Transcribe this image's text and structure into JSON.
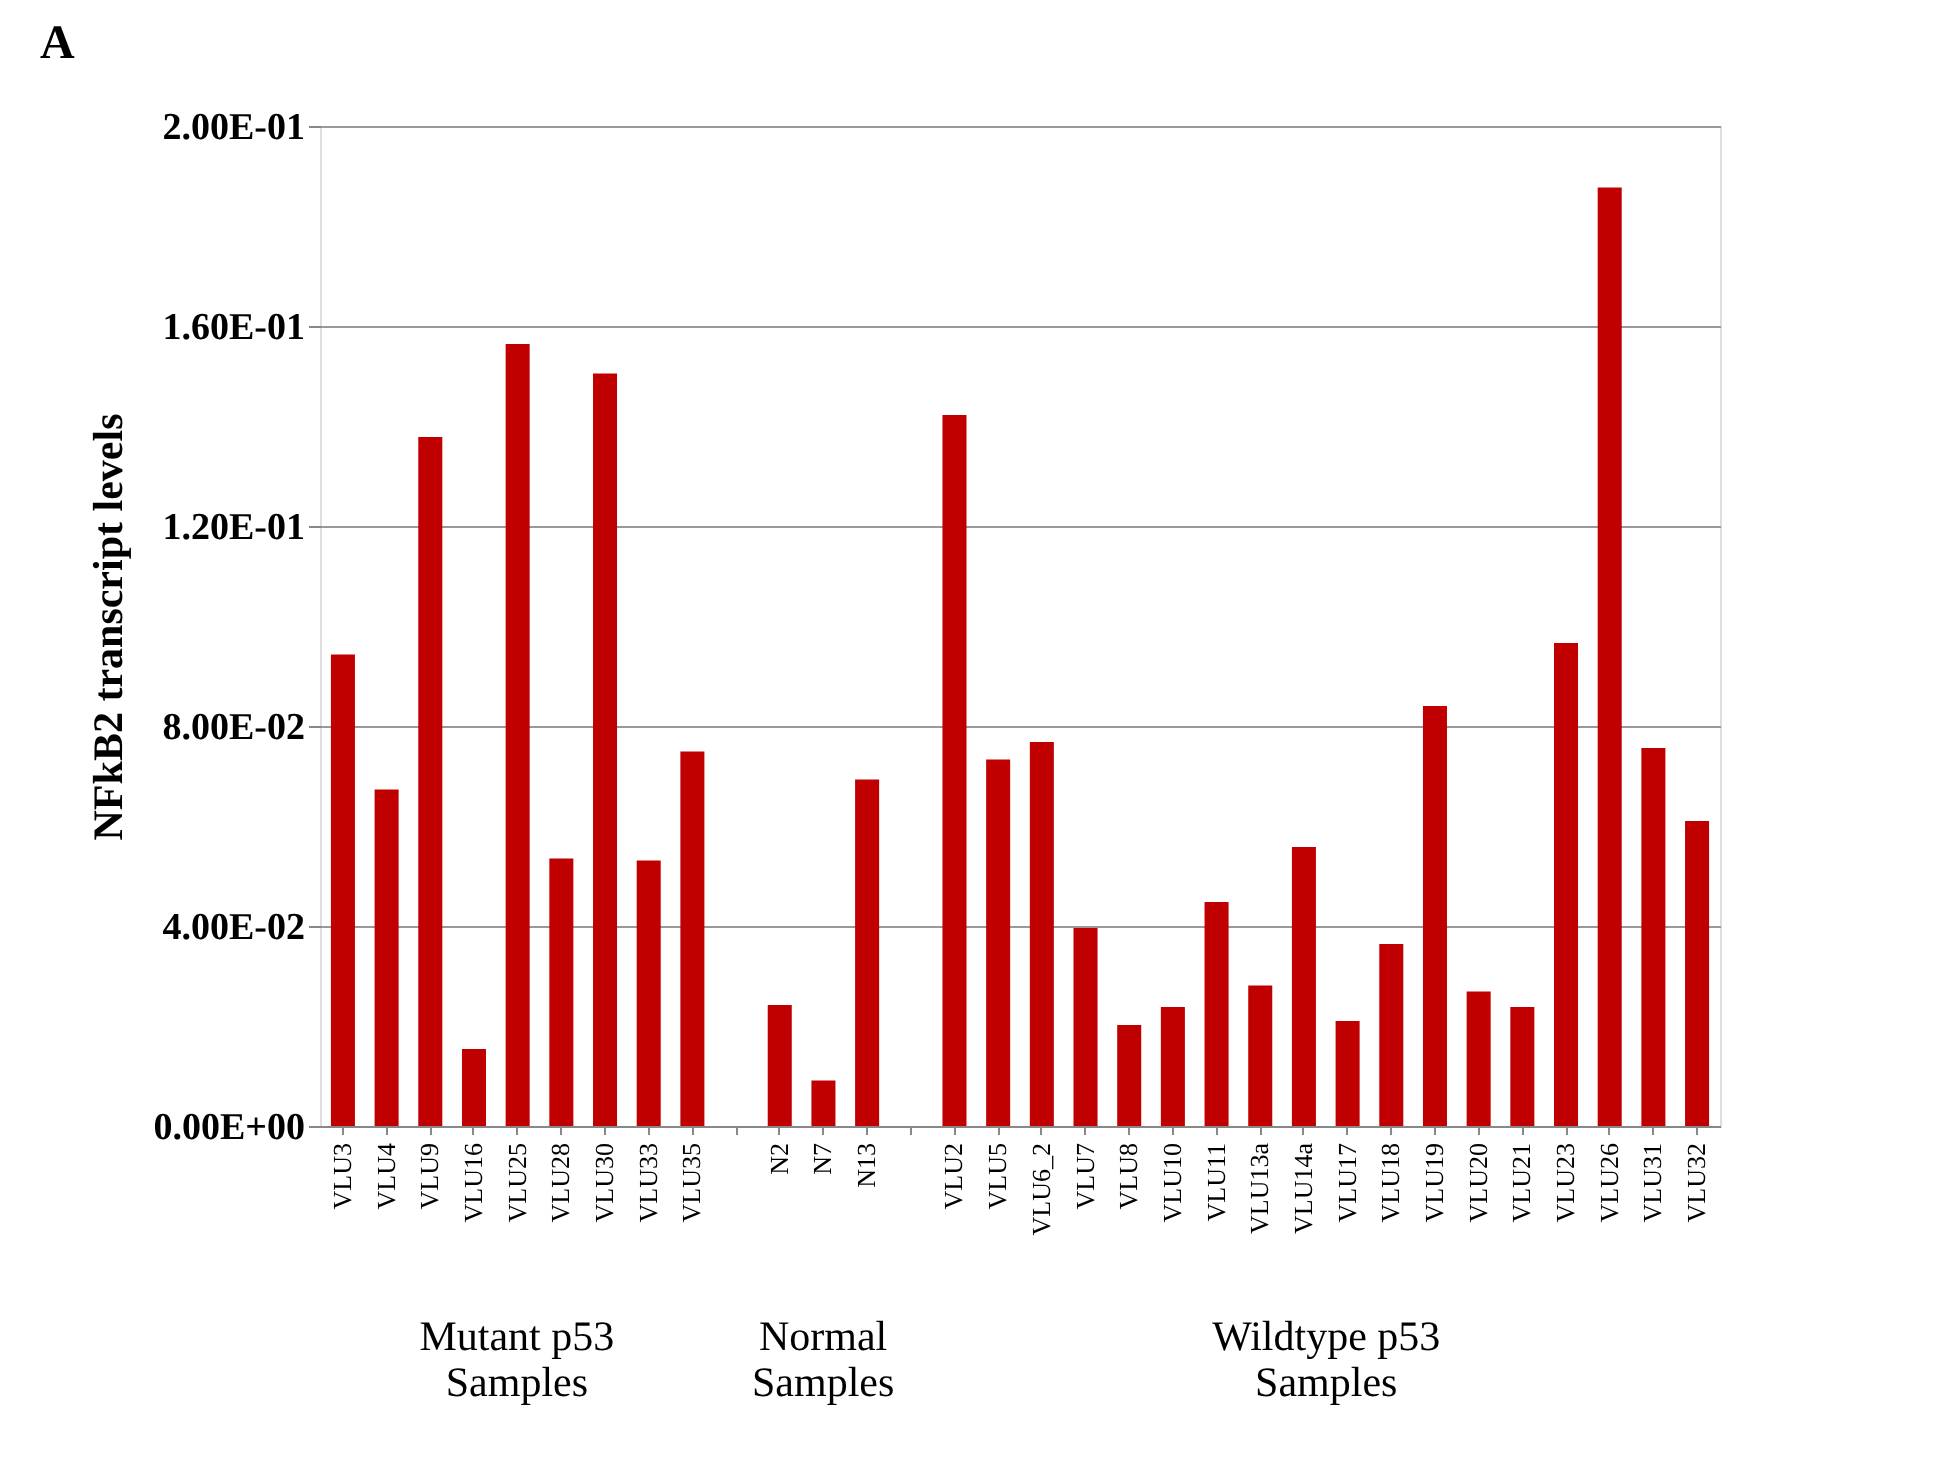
{
  "chart_data": {
    "type": "bar",
    "title": "A",
    "ylabel": "NFkB2 transcript levels",
    "categories": [
      "VLU3",
      "VLU4",
      "VLU9",
      "VLU16",
      "VLU25",
      "VLU28",
      "VLU30",
      "VLU33",
      "VLU35",
      null,
      "N2",
      "N7",
      "N13",
      null,
      "VLU2",
      "VLU5",
      "VLU6_2",
      "VLU7",
      "VLU8",
      "VLU10",
      "VLU11",
      "VLU13a",
      "VLU14a",
      "VLU17",
      "VLU18",
      "VLU19",
      "VLU20",
      "VLU21",
      "VLU23",
      "VLU26",
      "VLU31",
      "VLU32"
    ],
    "values": [
      0.0943,
      0.0673,
      0.1378,
      0.0154,
      0.1564,
      0.0535,
      0.1505,
      0.0531,
      0.0749,
      null,
      0.0242,
      0.0091,
      0.0693,
      null,
      0.1422,
      0.0733,
      0.0768,
      0.0396,
      0.0202,
      0.0238,
      0.0448,
      0.0281,
      0.0558,
      0.021,
      0.0364,
      0.084,
      0.0269,
      0.0238,
      0.0966,
      0.1877,
      0.0756,
      0.061
    ],
    "color": "#c00000",
    "ylim": [
      0,
      0.2
    ],
    "yticks": [
      {
        "value": 0,
        "label": "0.00E+00"
      },
      {
        "value": 0.04,
        "label": "4.00E-02"
      },
      {
        "value": 0.08,
        "label": "8.00E-02"
      },
      {
        "value": 0.12,
        "label": "1.20E-01"
      },
      {
        "value": 0.16,
        "label": "1.60E-01"
      },
      {
        "value": 0.2,
        "label": "2.00E-01"
      }
    ],
    "grid": "y",
    "annotations": [
      "Mutant p53\nSamples",
      "Normal\nSamples",
      "Wildtype p53\nSamples"
    ]
  }
}
